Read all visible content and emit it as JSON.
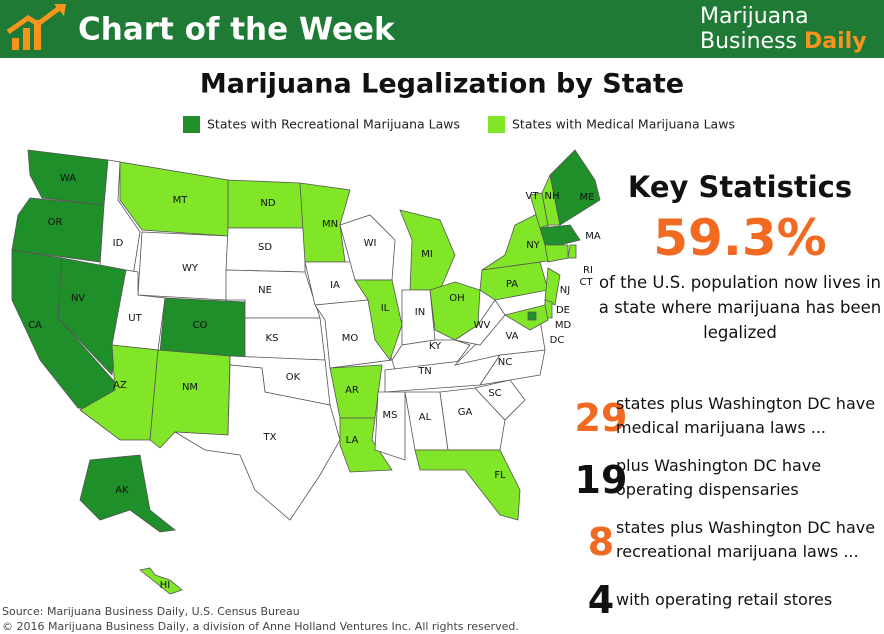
{
  "header": {
    "title": "Chart of the Week",
    "brand_line1": "Marijuana",
    "brand_line2": "Business",
    "brand_line2_accent": "Daily"
  },
  "map": {
    "title": "Marijuana Legalization by State",
    "legend": [
      {
        "label": "States with Recreational Marijuana Laws",
        "color": "#1f8f2a"
      },
      {
        "label": "States with Medical Marijuana Laws",
        "color": "#80e627"
      }
    ],
    "other_color": "#ffffff",
    "states": [
      {
        "label": "WA",
        "status": 0
      },
      {
        "label": "OR",
        "status": 0
      },
      {
        "label": "CA",
        "status": 0
      },
      {
        "label": "NV",
        "status": 0
      },
      {
        "label": "ID",
        "status": null
      },
      {
        "label": "MT",
        "status": 1
      },
      {
        "label": "WY",
        "status": null
      },
      {
        "label": "UT",
        "status": null
      },
      {
        "label": "CO",
        "status": 0
      },
      {
        "label": "AZ",
        "status": 1
      },
      {
        "label": "NM",
        "status": 1
      },
      {
        "label": "ND",
        "status": 1
      },
      {
        "label": "SD",
        "status": null
      },
      {
        "label": "NE",
        "status": null
      },
      {
        "label": "KS",
        "status": null
      },
      {
        "label": "OK",
        "status": null
      },
      {
        "label": "TX",
        "status": null
      },
      {
        "label": "MN",
        "status": 1
      },
      {
        "label": "IA",
        "status": null
      },
      {
        "label": "MO",
        "status": null
      },
      {
        "label": "AR",
        "status": 1
      },
      {
        "label": "LA",
        "status": 1
      },
      {
        "label": "WI",
        "status": null
      },
      {
        "label": "IL",
        "status": 1
      },
      {
        "label": "MI",
        "status": 1
      },
      {
        "label": "IN",
        "status": null
      },
      {
        "label": "OH",
        "status": 1
      },
      {
        "label": "KY",
        "status": null
      },
      {
        "label": "TN",
        "status": null
      },
      {
        "label": "MS",
        "status": null
      },
      {
        "label": "AL",
        "status": null
      },
      {
        "label": "GA",
        "status": null
      },
      {
        "label": "FL",
        "status": 1
      },
      {
        "label": "SC",
        "status": null
      },
      {
        "label": "NC",
        "status": null
      },
      {
        "label": "VA",
        "status": null
      },
      {
        "label": "WV",
        "status": null
      },
      {
        "label": "PA",
        "status": 1
      },
      {
        "label": "NY",
        "status": 1
      },
      {
        "label": "VT",
        "status": 1
      },
      {
        "label": "NH",
        "status": 1
      },
      {
        "label": "ME",
        "status": 0
      },
      {
        "label": "MA",
        "status": 0
      },
      {
        "label": "RI",
        "status": 1
      },
      {
        "label": "CT",
        "status": 1
      },
      {
        "label": "NJ",
        "status": 1
      },
      {
        "label": "DE",
        "status": 1
      },
      {
        "label": "MD",
        "status": 1
      },
      {
        "label": "DC",
        "status": 0
      },
      {
        "label": "AK",
        "status": 0
      },
      {
        "label": "HI",
        "status": 1
      }
    ]
  },
  "key_statistics": {
    "title": "Key Statistics",
    "headline": "59.3%",
    "headline_text": "of the U.S. population now lives in a state where marijuana has been legalized",
    "items": [
      {
        "number": "29",
        "text": "states plus Washington DC have medical marijuana laws ...",
        "color": "#f26a21"
      },
      {
        "number": "19",
        "text": "plus Washington DC have operating dispensaries",
        "color": "#111111"
      },
      {
        "number": "8",
        "text": "states plus Washington DC have recreational marijuana laws ...",
        "color": "#f26a21"
      },
      {
        "number": "4",
        "text": "with operating retail stores",
        "color": "#111111"
      }
    ]
  },
  "footer": {
    "source": "Source: Marijuana Business Daily, U.S. Census Bureau",
    "copyright": "© 2016 Marijuana Business Daily, a division of Anne Holland Ventures Inc. All rights reserved."
  }
}
